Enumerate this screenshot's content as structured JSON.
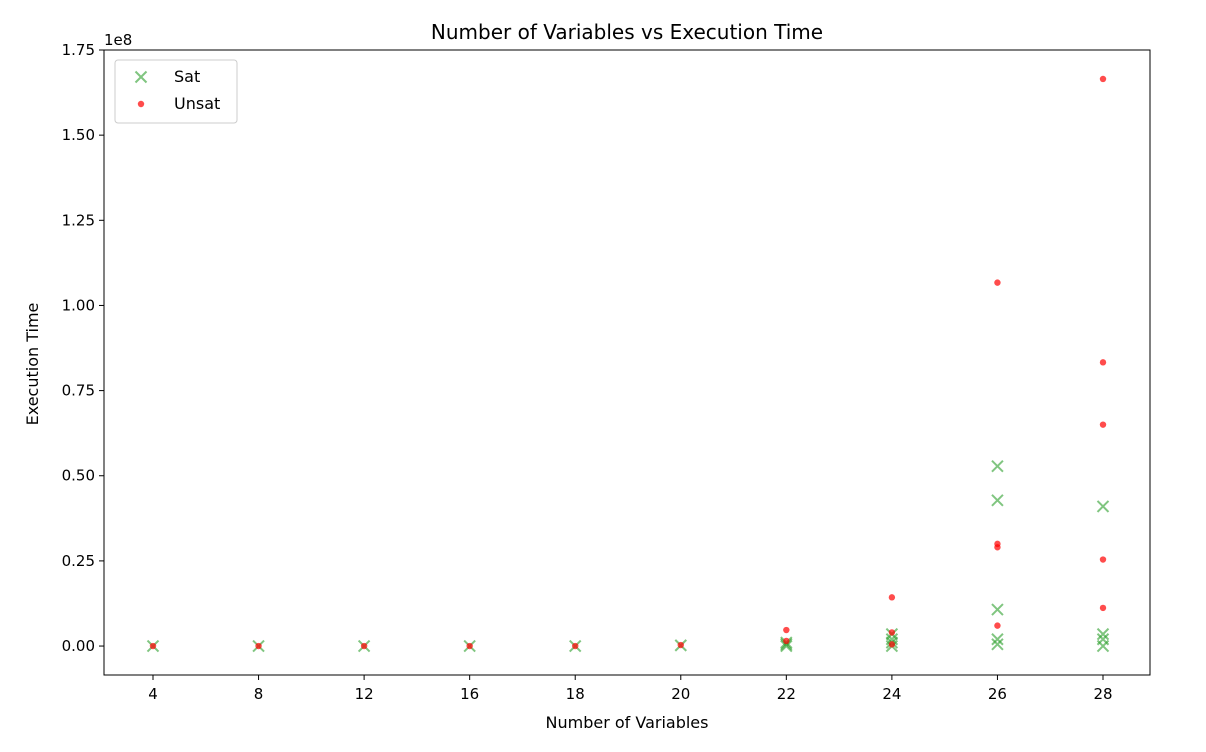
{
  "chart_data": {
    "type": "scatter",
    "title": "Number of Variables vs Execution Time",
    "xlabel": "Number of Variables",
    "ylabel": "Execution Time",
    "y_offset_label": "1e8",
    "x_categories": [
      "4",
      "8",
      "12",
      "16",
      "18",
      "20",
      "22",
      "24",
      "26",
      "28"
    ],
    "y_ticks": [
      "0.00",
      "0.25",
      "0.50",
      "0.75",
      "1.00",
      "1.25",
      "1.50",
      "1.75"
    ],
    "y_scale_exponent": 8,
    "ylim": [
      -0.085,
      1.75
    ],
    "legend_position": "top-left",
    "grid": false,
    "series": [
      {
        "name": "Sat",
        "marker": "x",
        "color": "#2ca02c",
        "points": [
          {
            "x": "4",
            "y": 0.0
          },
          {
            "x": "8",
            "y": 0.0
          },
          {
            "x": "12",
            "y": 0.0
          },
          {
            "x": "16",
            "y": 0.0
          },
          {
            "x": "18",
            "y": 0.0
          },
          {
            "x": "20",
            "y": 0.002
          },
          {
            "x": "22",
            "y": 0.0
          },
          {
            "x": "22",
            "y": 0.005
          },
          {
            "x": "22",
            "y": 0.01
          },
          {
            "x": "24",
            "y": 0.0
          },
          {
            "x": "24",
            "y": 0.01
          },
          {
            "x": "24",
            "y": 0.02
          },
          {
            "x": "24",
            "y": 0.035
          },
          {
            "x": "26",
            "y": 0.005
          },
          {
            "x": "26",
            "y": 0.02
          },
          {
            "x": "26",
            "y": 0.107
          },
          {
            "x": "26",
            "y": 0.428
          },
          {
            "x": "26",
            "y": 0.528
          },
          {
            "x": "28",
            "y": 0.0
          },
          {
            "x": "28",
            "y": 0.02
          },
          {
            "x": "28",
            "y": 0.035
          },
          {
            "x": "28",
            "y": 0.41
          }
        ]
      },
      {
        "name": "Unsat",
        "marker": "o",
        "color": "#ff0000",
        "points": [
          {
            "x": "4",
            "y": 0.0
          },
          {
            "x": "8",
            "y": 0.0
          },
          {
            "x": "12",
            "y": 0.0
          },
          {
            "x": "16",
            "y": 0.0
          },
          {
            "x": "18",
            "y": 0.0
          },
          {
            "x": "20",
            "y": 0.003
          },
          {
            "x": "22",
            "y": 0.015
          },
          {
            "x": "22",
            "y": 0.047
          },
          {
            "x": "24",
            "y": 0.005
          },
          {
            "x": "24",
            "y": 0.04
          },
          {
            "x": "24",
            "y": 0.143
          },
          {
            "x": "26",
            "y": 0.06
          },
          {
            "x": "26",
            "y": 0.29
          },
          {
            "x": "26",
            "y": 0.3
          },
          {
            "x": "26",
            "y": 1.067
          },
          {
            "x": "28",
            "y": 0.112
          },
          {
            "x": "28",
            "y": 0.254
          },
          {
            "x": "28",
            "y": 0.65
          },
          {
            "x": "28",
            "y": 0.833
          },
          {
            "x": "28",
            "y": 1.665
          }
        ]
      }
    ]
  }
}
